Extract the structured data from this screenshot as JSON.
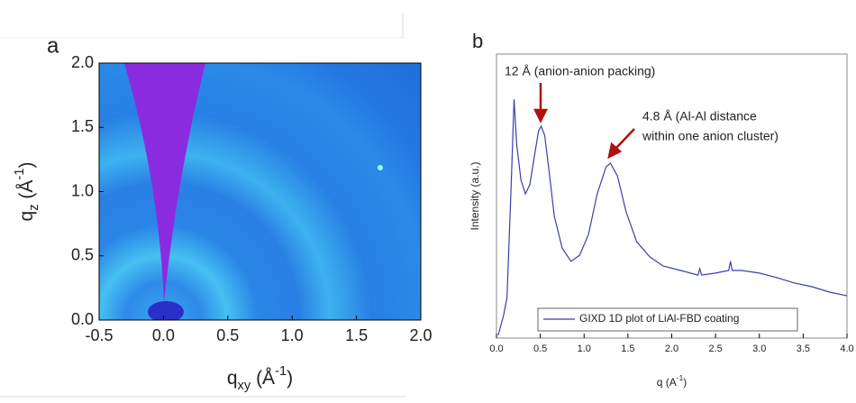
{
  "chart_data": [
    {
      "type": "image",
      "panel": "a",
      "xlabel": [
        {
          "text": "q"
        },
        {
          "text": "xy",
          "style": "sub"
        },
        {
          "text": " (Å"
        },
        {
          "text": "-1",
          "style": "sup"
        },
        {
          "text": ")"
        }
      ],
      "ylabel": [
        {
          "text": "q"
        },
        {
          "text": "z",
          "style": "sub"
        },
        {
          "text": " (Å"
        },
        {
          "text": "-1",
          "style": "sup"
        },
        {
          "text": ")"
        }
      ],
      "xlim": [
        -0.5,
        2.0
      ],
      "xticks": [
        -0.5,
        {
          "value": 0,
          "label": "0.0"
        },
        0.5,
        {
          "value": 1,
          "label": "1.0"
        },
        1.5,
        {
          "value": 2,
          "label": "2.0"
        }
      ],
      "ylim": [
        0,
        2.0
      ],
      "yticks": [
        {
          "value": 0,
          "label": "0.0"
        },
        0.5,
        {
          "value": 1,
          "label": "1.0"
        },
        1.5,
        {
          "value": 2,
          "label": "2.0"
        }
      ]
    },
    {
      "type": "line",
      "panel": "b",
      "xlabel": [
        {
          "text": "q (A"
        },
        {
          "text": "-1",
          "style": "sup"
        },
        {
          "text": ")"
        }
      ],
      "ylabel": [
        {
          "text": "Intensity (a.u.)"
        }
      ],
      "xlim": [
        0,
        4.0
      ],
      "xticks": [
        {
          "value": 0,
          "label": "0.0"
        },
        0.5,
        {
          "value": 1,
          "label": "1.0"
        },
        1.5,
        {
          "value": 2,
          "label": "2.0"
        },
        2.5,
        {
          "value": 3,
          "label": "3.0"
        },
        3.5,
        {
          "value": 4,
          "label": "4.0"
        }
      ],
      "ylim": [
        0,
        100
      ],
      "x": [
        0.02,
        0.08,
        0.12,
        0.17,
        0.2,
        0.23,
        0.28,
        0.33,
        0.38,
        0.43,
        0.48,
        0.51,
        0.55,
        0.6,
        0.66,
        0.75,
        0.85,
        0.95,
        1.05,
        1.15,
        1.25,
        1.3,
        1.38,
        1.48,
        1.6,
        1.75,
        1.9,
        2.1,
        2.3,
        2.32,
        2.34,
        2.5,
        2.65,
        2.67,
        2.69,
        2.8,
        3.0,
        3.2,
        3.4,
        3.6,
        3.8,
        4.0
      ],
      "series": [
        {
          "name": "GIXD 1D plot of LiAl-FBD coating",
          "color": "#3b3fa8",
          "values": [
            1.0,
            7.9,
            14.3,
            55.6,
            84.1,
            68.3,
            55.6,
            50.8,
            54.0,
            63.5,
            73.0,
            74.6,
            71.4,
            58.7,
            42.9,
            31.7,
            27.0,
            29.2,
            36.5,
            50.8,
            60.3,
            61.6,
            57.1,
            44.4,
            33.9,
            28.6,
            25.4,
            23.8,
            22.2,
            24.4,
            22.2,
            22.9,
            23.8,
            27.0,
            23.8,
            23.8,
            22.9,
            21.3,
            19.4,
            18.1,
            16.2,
            14.9
          ]
        }
      ],
      "annotations": [
        "12 Å (anion-anion packing)",
        "4.8 Å (Al-Al distance",
        "within one anion cluster)"
      ]
    }
  ]
}
